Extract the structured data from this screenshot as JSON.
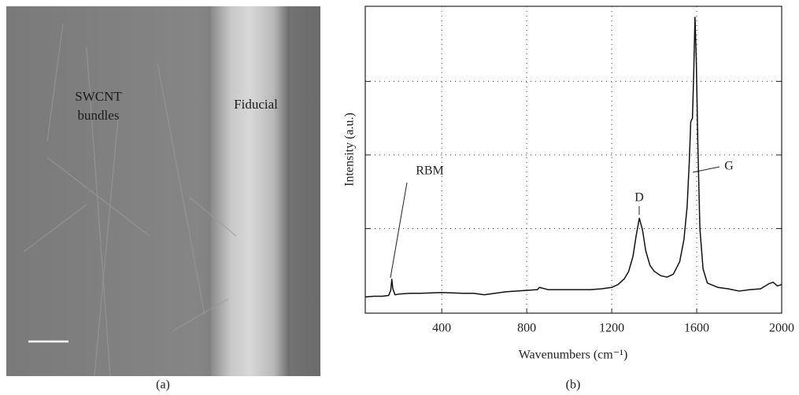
{
  "image_panel": {
    "labels": [
      "SWCNT",
      "bundles",
      "Fiducial"
    ],
    "caption": "(a)"
  },
  "chart_data": {
    "type": "line",
    "caption": "(b)",
    "xlabel": "Wavenumbers (cm⁻¹)",
    "ylabel": "Intensity (a.u.)",
    "annotations": [
      "RBM",
      "D",
      "G"
    ],
    "x": [
      40,
      80,
      120,
      150,
      160,
      165,
      170,
      180,
      200,
      250,
      300,
      400,
      500,
      550,
      600,
      650,
      700,
      800,
      850,
      860,
      900,
      1000,
      1100,
      1150,
      1200,
      1230,
      1260,
      1280,
      1300,
      1315,
      1330,
      1345,
      1360,
      1380,
      1400,
      1430,
      1460,
      1490,
      1520,
      1540,
      1555,
      1565,
      1572,
      1580,
      1586,
      1592,
      1598,
      1605,
      1615,
      1630,
      1650,
      1700,
      1750,
      1800,
      1850,
      1900,
      1940,
      1960,
      1980,
      2000
    ],
    "series": [
      {
        "color": "#111111",
        "values": [
          0.07,
          0.08,
          0.08,
          0.09,
          0.16,
          0.31,
          0.18,
          0.1,
          0.11,
          0.12,
          0.12,
          0.13,
          0.12,
          0.12,
          0.1,
          0.12,
          0.14,
          0.16,
          0.17,
          0.2,
          0.17,
          0.17,
          0.17,
          0.18,
          0.2,
          0.24,
          0.32,
          0.42,
          0.62,
          0.9,
          1.14,
          0.98,
          0.7,
          0.5,
          0.42,
          0.36,
          0.34,
          0.38,
          0.55,
          0.85,
          1.3,
          1.9,
          2.45,
          2.5,
          3.1,
          3.87,
          3.3,
          2.2,
          1.0,
          0.45,
          0.26,
          0.2,
          0.18,
          0.15,
          0.17,
          0.18,
          0.25,
          0.27,
          0.22,
          0.24
        ]
      }
    ],
    "xlim": [
      40,
      2000
    ],
    "xticks": [
      400,
      800,
      1200,
      1600,
      2000
    ],
    "ylim": [
      -0.15,
      4.02
    ],
    "yticks": [
      1,
      2,
      3
    ],
    "grid": true
  }
}
